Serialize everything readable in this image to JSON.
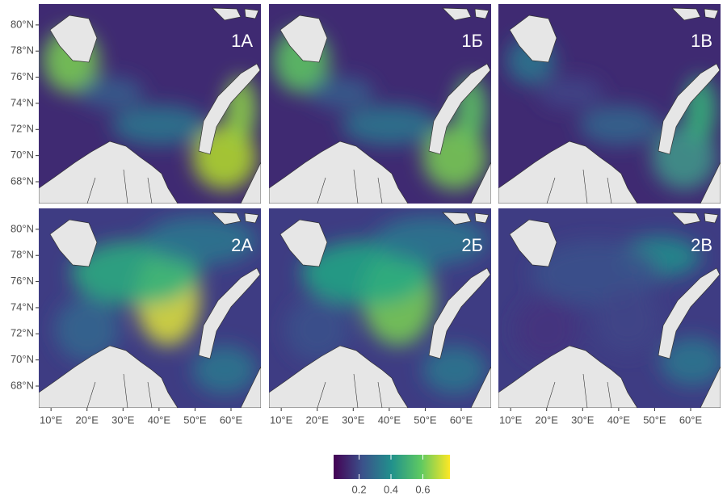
{
  "panels": [
    {
      "label": "1А"
    },
    {
      "label": "1Б"
    },
    {
      "label": "1В"
    },
    {
      "label": "2А"
    },
    {
      "label": "2Б"
    },
    {
      "label": "2В"
    }
  ],
  "latitude_axis": {
    "lim": [
      66.33,
      81.6
    ],
    "ticks": [
      {
        "value": 68,
        "label": "68°N"
      },
      {
        "value": 70,
        "label": "70°N"
      },
      {
        "value": 72,
        "label": "72°N"
      },
      {
        "value": 74,
        "label": "74°N"
      },
      {
        "value": 76,
        "label": "76°N"
      },
      {
        "value": 78,
        "label": "78°N"
      },
      {
        "value": 80,
        "label": "80°N"
      }
    ]
  },
  "longitude_axis": {
    "lim": [
      6.6,
      68.3
    ],
    "ticks": [
      {
        "value": 10,
        "label": "10°E"
      },
      {
        "value": 20,
        "label": "20°E"
      },
      {
        "value": 30,
        "label": "30°E"
      },
      {
        "value": 40,
        "label": "40°E"
      },
      {
        "value": 50,
        "label": "50°E"
      },
      {
        "value": 60,
        "label": "60°E"
      }
    ]
  },
  "colorbar": {
    "lim": [
      0.04,
      0.77
    ],
    "ticks": [
      0.2,
      0.4,
      0.6
    ]
  }
}
